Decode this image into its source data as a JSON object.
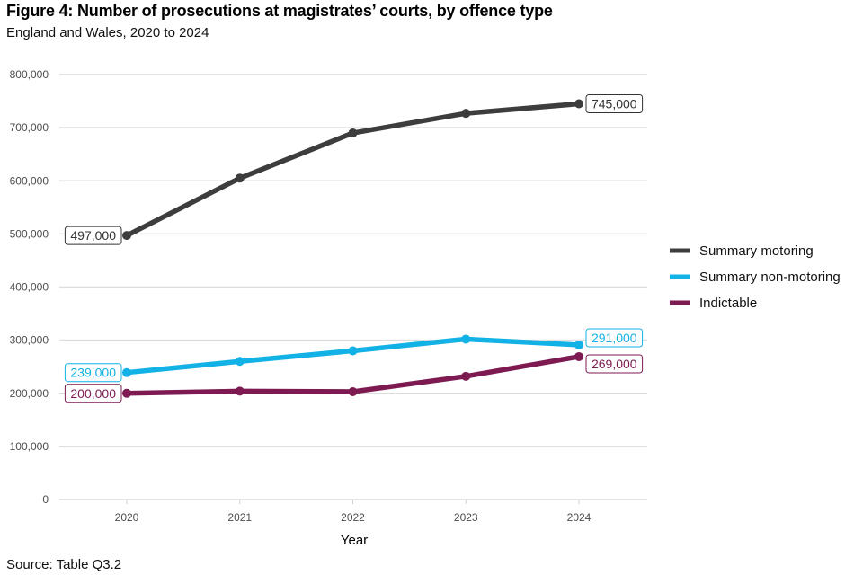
{
  "chart_data": {
    "type": "line",
    "title": "Figure 4: Number of prosecutions at magistrates’ courts, by offence type",
    "subtitle": "England and Wales, 2020 to 2024",
    "xlabel": "Year",
    "ylabel": "",
    "source": "Source: Table Q3.2",
    "x": [
      "2020",
      "2021",
      "2022",
      "2023",
      "2024"
    ],
    "ylim": [
      0,
      800000
    ],
    "yticks": [
      0,
      100000,
      200000,
      300000,
      400000,
      500000,
      600000,
      700000,
      800000
    ],
    "ytick_labels": [
      "0",
      "100,000",
      "200,000",
      "300,000",
      "400,000",
      "500,000",
      "600,000",
      "700,000",
      "800,000"
    ],
    "grid": true,
    "legend_position": "right",
    "series": [
      {
        "name": "Summary motoring",
        "color": "#3d3d3d",
        "values": [
          497000,
          605000,
          690000,
          727000,
          745000
        ],
        "start_label": "497,000",
        "end_label": "745,000"
      },
      {
        "name": "Summary non-motoring",
        "color": "#12b1e6",
        "values": [
          239000,
          260000,
          280000,
          302000,
          291000
        ],
        "start_label": "239,000",
        "end_label": "291,000"
      },
      {
        "name": "Indictable",
        "color": "#7d1a52",
        "values": [
          200000,
          204000,
          203000,
          232000,
          269000
        ],
        "start_label": "200,000",
        "end_label": "269,000"
      }
    ]
  }
}
